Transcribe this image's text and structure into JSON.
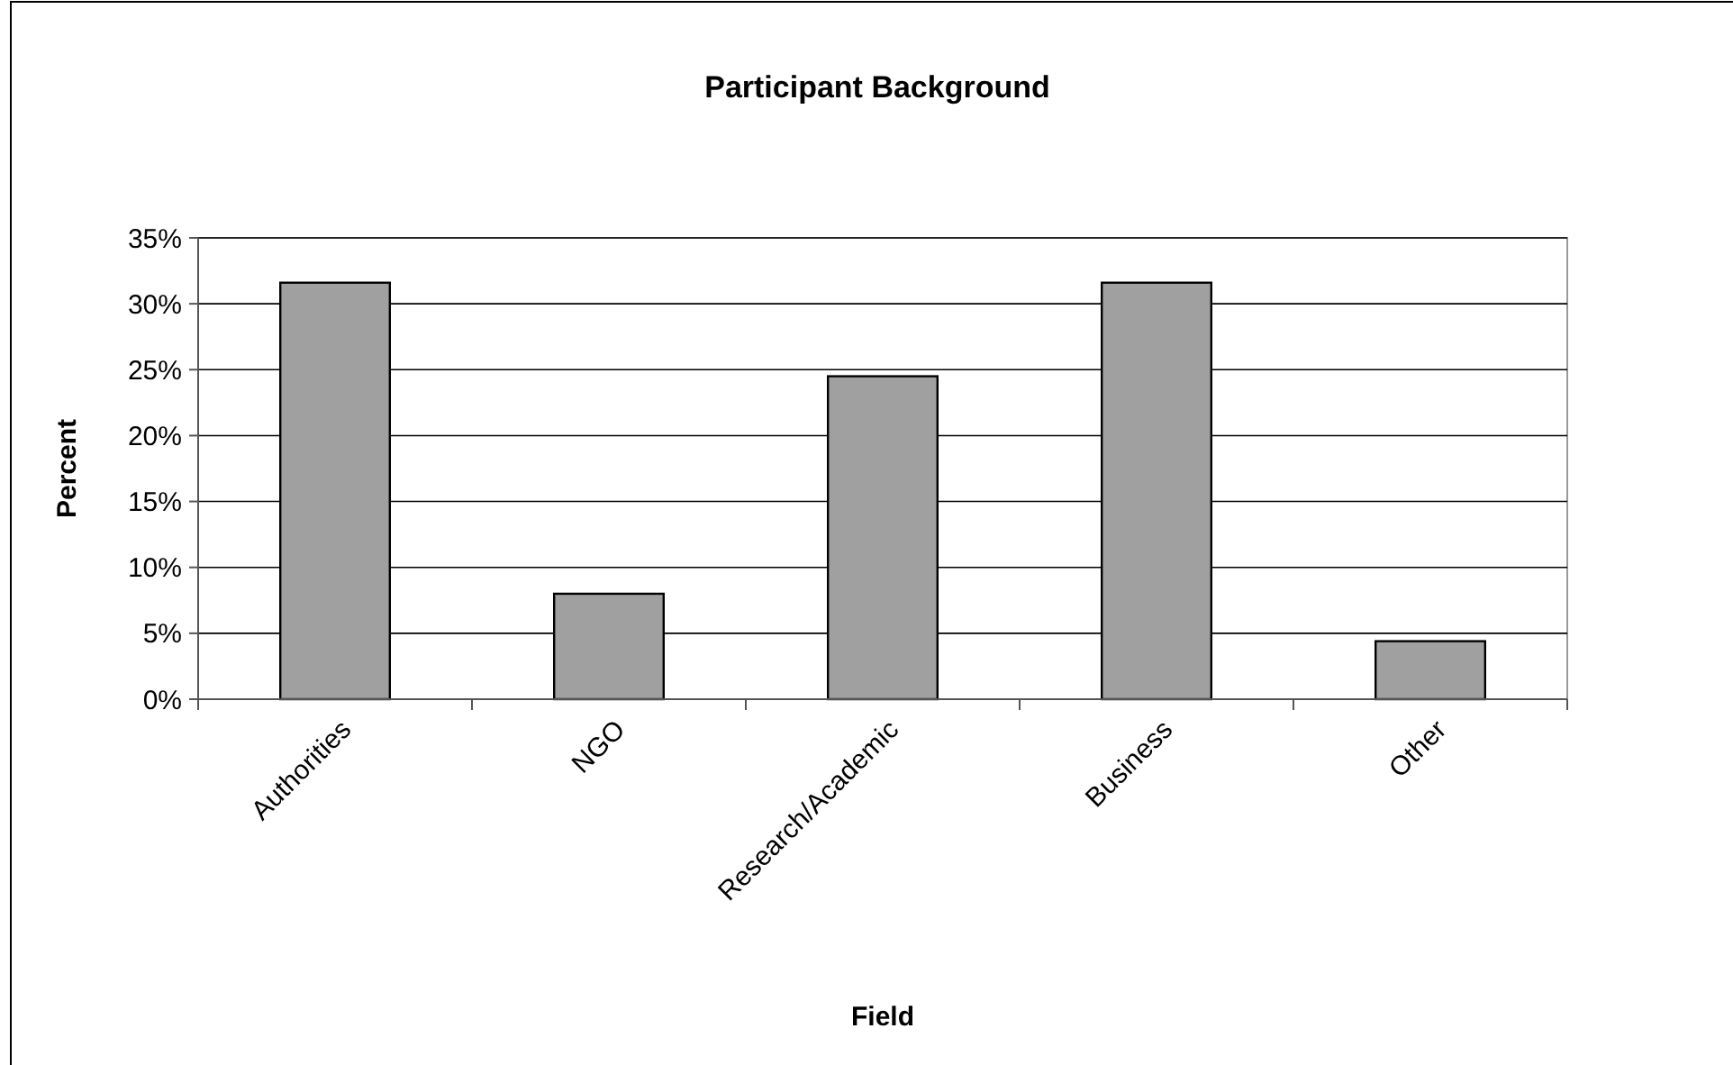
{
  "chart_data": {
    "type": "bar",
    "title": "Participant Background",
    "xlabel": "Field",
    "ylabel": "Percent",
    "categories": [
      "Authorities",
      "NGO",
      "Research/Academic",
      "Business",
      "Other"
    ],
    "values": [
      31.6,
      8.0,
      24.5,
      31.6,
      4.4
    ],
    "color": "#a0a0a0",
    "ylim": [
      0,
      35
    ],
    "yticks": [
      {
        "value": 0,
        "label": "0%"
      },
      {
        "value": 5,
        "label": "5%"
      },
      {
        "value": 10,
        "label": "10%"
      },
      {
        "value": 15,
        "label": "15%"
      },
      {
        "value": 20,
        "label": "20%"
      },
      {
        "value": 25,
        "label": "25%"
      },
      {
        "value": 30,
        "label": "30%"
      },
      {
        "value": 35,
        "label": "35%"
      }
    ],
    "grid": "y"
  }
}
